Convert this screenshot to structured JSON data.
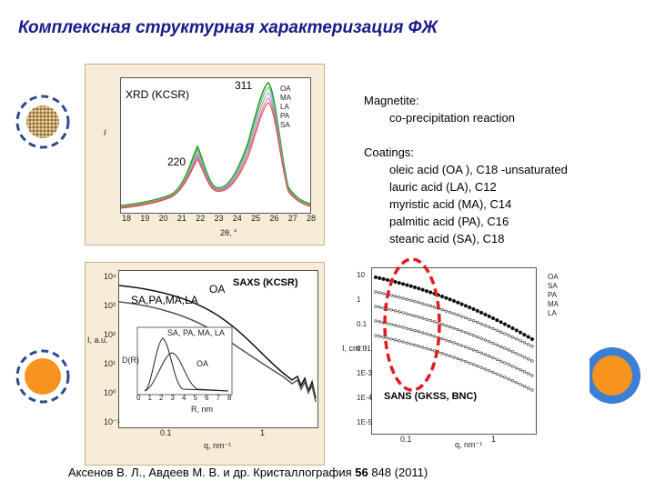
{
  "title": "Комплексная структурная характеризация ФЖ",
  "xrd": {
    "label": "XRD (KCSR)",
    "peak1": "311",
    "peak2": "220",
    "ylabel": "I",
    "xlabel": "2θ, °",
    "xticks": [
      "18",
      "19",
      "20",
      "21",
      "22",
      "23",
      "24",
      "25",
      "26",
      "27",
      "28"
    ],
    "legend": [
      "OA",
      "MA",
      "LA",
      "PA",
      "SA"
    ]
  },
  "magnetite": {
    "heading": "Magnetite:",
    "text": "co-precipitation reaction"
  },
  "coatings": {
    "heading": "Coatings:",
    "items": [
      "oleic acid (OA ), C18 -unsaturated",
      "lauric acid (LA), C12",
      "myristic acid (MA), C14",
      "palmitic acid (PA),  C16",
      "stearic acid (SA), C18"
    ]
  },
  "saxs": {
    "label": "SAXS (KCSR)",
    "curve_oa": "OA",
    "curve_group": "SA,PA,MA,LA",
    "inset_group": "SA, PA, MA, LA",
    "inset_oa": "OA",
    "inset_xlabel": "R, nm",
    "inset_ylabel": "D(R)",
    "ylabel": "I, a.u.",
    "xlabel": "q, nm⁻¹",
    "yticks": [
      "10⁴",
      "10³",
      "10²",
      "10¹",
      "10⁰",
      "10⁻¹"
    ],
    "xticks": [
      "0.1",
      "1"
    ],
    "inset_xticks": [
      "0",
      "1",
      "2",
      "3",
      "4",
      "5",
      "6",
      "7",
      "8"
    ]
  },
  "sans": {
    "label": "SANS (GKSS, BNC)",
    "yticks": [
      "10",
      "1",
      "0.1",
      "0.01",
      "1E-3",
      "1E-4",
      "1E-5"
    ],
    "xticks": [
      "0.1",
      "1"
    ],
    "xlabel": "q, nm⁻¹",
    "ylabel": "I, cm⁻¹",
    "legend": [
      "OA",
      "SA",
      "PA",
      "MA",
      "LA"
    ]
  },
  "citation": {
    "prefix": "Аксенов В. Л., Авдеев М. В.  и др. Кристаллография ",
    "volume": "56",
    "rest": " 848 (2011)"
  },
  "colors": {
    "title": "#1a1a8c",
    "dash_circle": "#2b4d8c",
    "orange": "#f7941d",
    "blue": "#3a7fd5",
    "red_ellipse": "#e01c1c"
  }
}
